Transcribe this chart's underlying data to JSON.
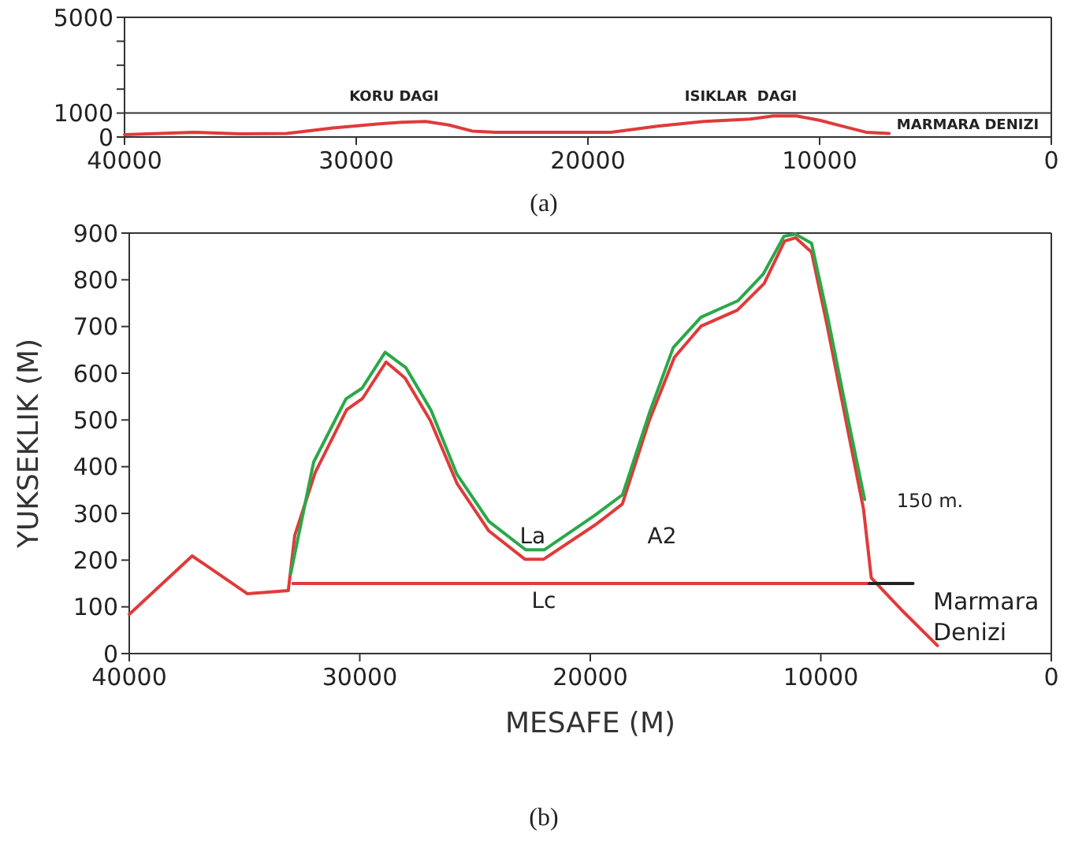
{
  "chart_data": [
    {
      "type": "line",
      "xlim": [
        40000,
        0
      ],
      "xticks": [
        40000,
        30000,
        20000,
        10000,
        0
      ],
      "ylim": [
        0,
        5000
      ],
      "yticks": [
        0,
        1000,
        {
          "value": 2000,
          "label": null
        },
        {
          "value": 3000,
          "label": null
        },
        {
          "value": 4000,
          "label": null
        },
        5000
      ],
      "series": [
        {
          "color": "#e03a3a",
          "x": [
            40000,
            37000,
            35000,
            33000,
            31000,
            29000,
            28000,
            27000,
            26000,
            25000,
            24000,
            19000,
            17000,
            15000,
            13000,
            12000,
            11000,
            10000,
            9000,
            8000,
            7000
          ],
          "values": [
            100,
            200,
            130,
            150,
            380,
            550,
            620,
            650,
            500,
            250,
            200,
            200,
            450,
            650,
            750,
            880,
            880,
            700,
            450,
            200,
            150
          ]
        }
      ],
      "ref_lines": [
        {
          "axis": "y",
          "value": 1000,
          "color": "#333333"
        }
      ],
      "annotations": [
        "KORU DAGI",
        "ISIKLAR  DAGI",
        "MARMARA DENIZI",
        "(a)"
      ]
    },
    {
      "type": "line",
      "xlabel": "MESAFE (M)",
      "ylabel": "YUKSEKLIK (M)",
      "xlim": [
        40000,
        0
      ],
      "xticks": [
        40000,
        30000,
        20000,
        10000,
        0
      ],
      "ylim": [
        0,
        900
      ],
      "yticks": [
        0,
        100,
        200,
        300,
        400,
        500,
        600,
        700,
        800,
        900
      ],
      "series": [
        {
          "color": "#e03a3a",
          "x": [
            40000,
            37270,
            34870,
            33100,
            32820,
            31930,
            30570,
            29880,
            28860,
            28040,
            26940,
            25780,
            24410,
            22840,
            22020,
            19770,
            18610,
            17440,
            16350,
            15190,
            13620,
            12460,
            11570,
            11090,
            10400,
            9720,
            8830,
            8150,
            7810,
            6510,
            4940
          ],
          "values": [
            84,
            209,
            128,
            135,
            253,
            388,
            522,
            546,
            624,
            590,
            499,
            364,
            263,
            202,
            202,
            276,
            320,
            499,
            634,
            701,
            735,
            792,
            883,
            890,
            859,
            701,
            479,
            310,
            162,
            94,
            17
          ]
        },
        {
          "color": "#2aa84a",
          "x": [
            33000,
            32000,
            30600,
            29900,
            28900,
            28000,
            26900,
            25800,
            24400,
            22800,
            22000,
            19800,
            18600,
            17400,
            16400,
            15200,
            13600,
            12500,
            11600,
            11100,
            10400,
            9700,
            8800,
            8100
          ],
          "values": [
            170,
            410,
            545,
            568,
            645,
            612,
            520,
            385,
            283,
            222,
            222,
            296,
            340,
            520,
            655,
            720,
            755,
            812,
            893,
            898,
            878,
            720,
            498,
            330
          ]
        },
        {
          "color": "#e03a3a",
          "x": [
            32900,
            7900
          ],
          "values": [
            150,
            150
          ]
        },
        {
          "color": "#222222",
          "x": [
            7900,
            6000
          ],
          "values": [
            150,
            150
          ]
        }
      ],
      "annotations": [
        {
          "text": "La",
          "x": 22500,
          "y": 236
        },
        "Lc",
        "A2",
        "150 m.",
        "Marmara Denizi",
        "(b)"
      ]
    }
  ]
}
